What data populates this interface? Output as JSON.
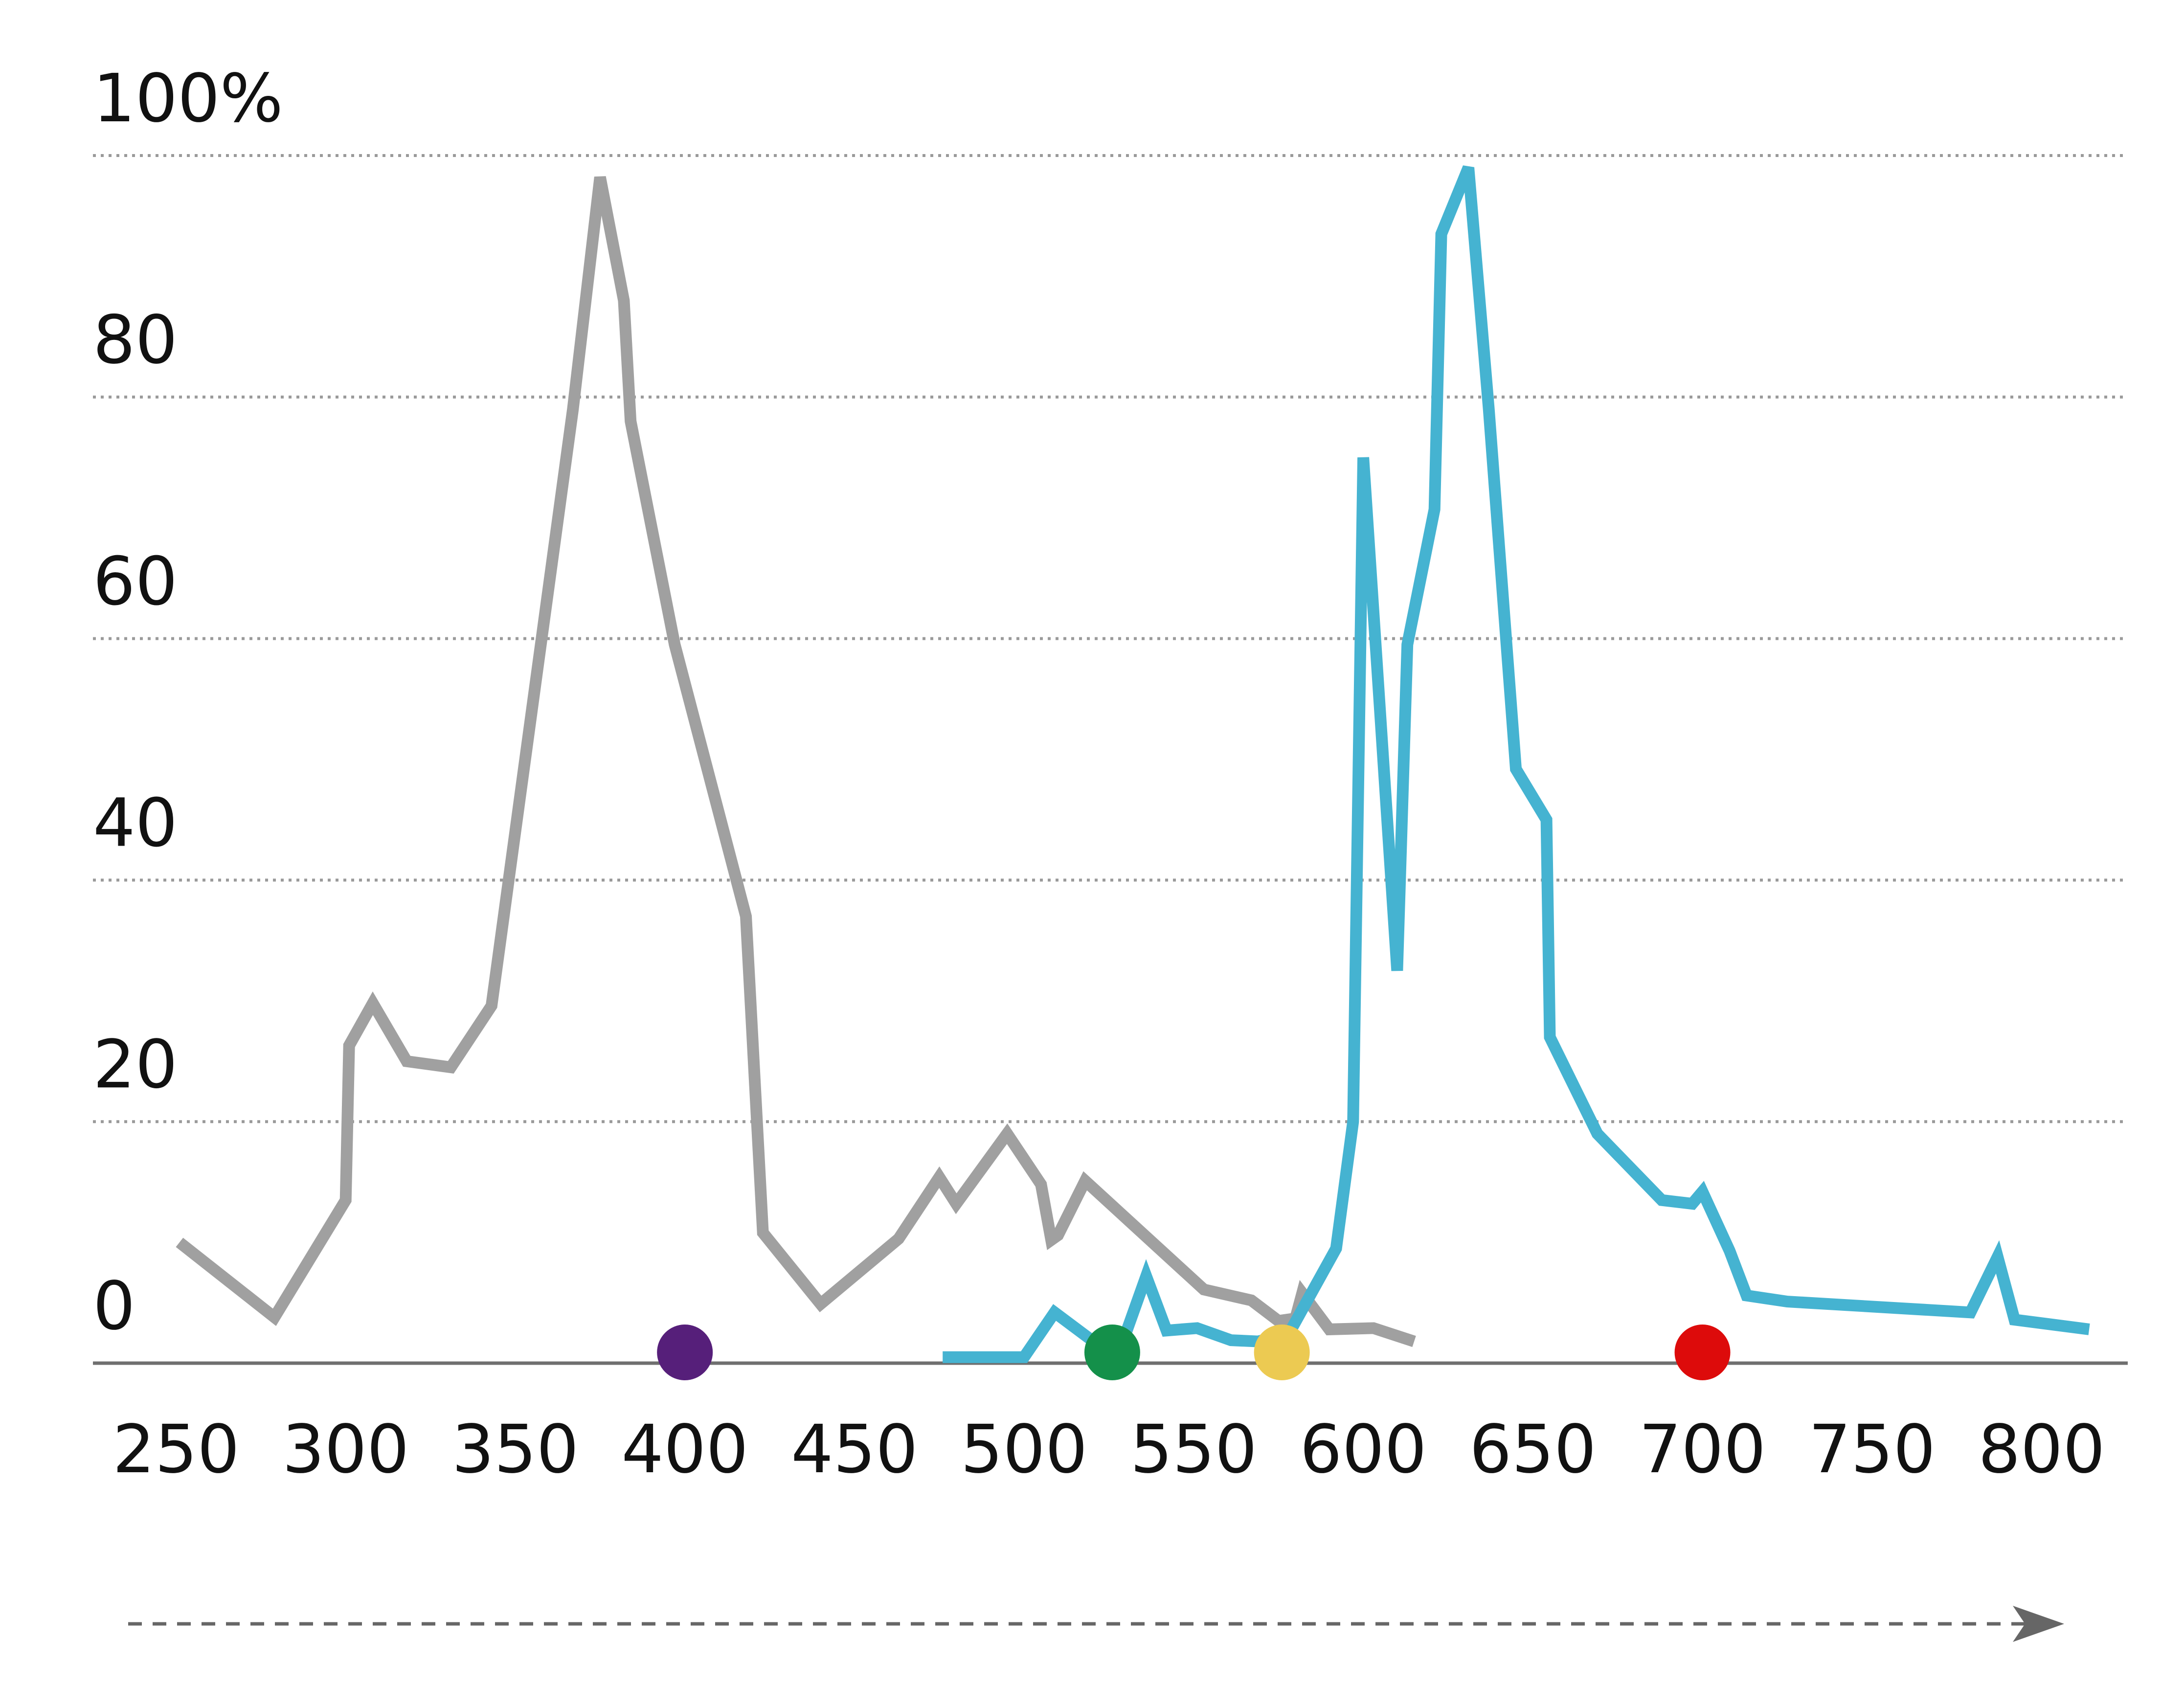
{
  "chart_data": {
    "type": "line",
    "title": "",
    "xlabel": "",
    "ylabel": "",
    "xlim": [
      250,
      825
    ],
    "ylim": [
      0,
      100
    ],
    "grid": true,
    "legend": "none",
    "x_ticks": [
      "250",
      "300",
      "350",
      "400",
      "450",
      "500",
      "550",
      "600",
      "650",
      "700",
      "750",
      "800"
    ],
    "y_ticks": [
      "0",
      "20",
      "40",
      "60",
      "80",
      "100%"
    ],
    "series": [
      {
        "color": "#a0a0a0",
        "points": [
          [
            251,
            10
          ],
          [
            279,
            3.8
          ],
          [
            300,
            13.5
          ],
          [
            301,
            26.3
          ],
          [
            308,
            29.8
          ],
          [
            318,
            25
          ],
          [
            331,
            24.5
          ],
          [
            343,
            29.6
          ],
          [
            367,
            79
          ],
          [
            375,
            98.2
          ],
          [
            382,
            88
          ],
          [
            384,
            78
          ],
          [
            397,
            59.5
          ],
          [
            418,
            37
          ],
          [
            423,
            10.8
          ],
          [
            440,
            4.9
          ],
          [
            463,
            10.3
          ],
          [
            475,
            15.4
          ],
          [
            480,
            13.2
          ],
          [
            495,
            19
          ],
          [
            505,
            14.8
          ],
          [
            508,
            10.2
          ],
          [
            510,
            10.6
          ],
          [
            518,
            15.1
          ],
          [
            553,
            6.1
          ],
          [
            567,
            5.2
          ],
          [
            575,
            3.5
          ],
          [
            580,
            3.7
          ],
          [
            582,
            5.8
          ],
          [
            590,
            2.8
          ],
          [
            603,
            2.9
          ],
          [
            615,
            1.8
          ]
        ]
      },
      {
        "color": "#45b3d1",
        "points": [
          [
            476,
            0.5
          ],
          [
            500,
            0.5
          ],
          [
            509,
            4.2
          ],
          [
            519,
            2.1
          ],
          [
            528,
            0.9
          ],
          [
            536,
            7.2
          ],
          [
            542,
            2.7
          ],
          [
            551,
            2.9
          ],
          [
            561,
            1.9
          ],
          [
            569,
            1.8
          ],
          [
            578,
            2.4
          ],
          [
            592,
            9.5
          ],
          [
            597,
            20
          ],
          [
            600,
            75
          ],
          [
            610,
            32.5
          ],
          [
            613,
            59.5
          ],
          [
            621,
            70.7
          ],
          [
            623,
            93.5
          ],
          [
            631,
            99
          ],
          [
            637,
            79
          ],
          [
            645,
            49.2
          ],
          [
            654,
            45
          ],
          [
            655,
            27
          ],
          [
            669,
            19
          ],
          [
            688,
            13.5
          ],
          [
            697,
            13.2
          ],
          [
            700,
            14.2
          ],
          [
            708,
            9.3
          ],
          [
            713,
            5.6
          ],
          [
            725,
            5.1
          ],
          [
            779,
            4.2
          ],
          [
            787,
            8.8
          ],
          [
            792,
            3.6
          ],
          [
            814,
            2.8
          ]
        ]
      }
    ],
    "markers": [
      {
        "x": 400,
        "color": "#561f7a"
      },
      {
        "x": 526,
        "color": "#14904a"
      },
      {
        "x": 576,
        "color": "#ecca52"
      },
      {
        "x": 700,
        "color": "#dd0b0b"
      }
    ],
    "axis_color": "#6f6f6f",
    "grid_color": "#9a9a9a",
    "arrow_color": "#666666"
  }
}
